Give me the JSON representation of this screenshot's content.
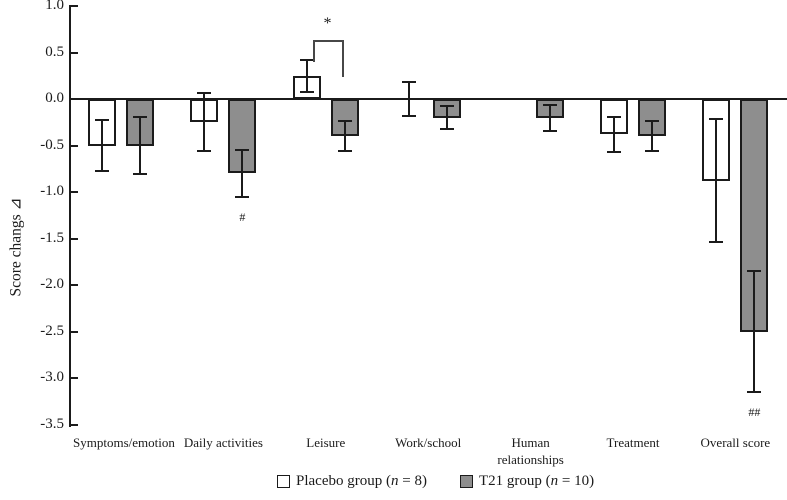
{
  "figure": {
    "background": "#ffffff",
    "line_color": "#1b1b1b",
    "legend": [
      {
        "swatch_color": "#ffffff",
        "parts": [
          "Placebo group (",
          "n",
          " = 8)"
        ]
      },
      {
        "swatch_color": "#8e8e8e",
        "parts": [
          "T21 group (",
          "n",
          " = 10)"
        ]
      }
    ]
  },
  "chart_data": {
    "type": "bar",
    "title": "",
    "xlabel": "",
    "ylabel": "Score changs ⊿",
    "ylim": [
      -3.5,
      1.0
    ],
    "grid": false,
    "legend_position": "bottom",
    "yticks": [
      "1.0",
      "0.5",
      "0.0",
      "-0.5",
      "-1.0",
      "-1.5",
      "-2.0",
      "-2.5",
      "-3.0",
      "-3.5"
    ],
    "categories": [
      "Symptoms/emotion",
      "Daily activities",
      "Leisure",
      "Work/school",
      "Human relationships",
      "Treatment",
      "Overall score"
    ],
    "series": [
      {
        "name": "Placebo group (n = 8)",
        "key": "placebo",
        "color": "#ffffff",
        "values": [
          -0.5,
          -0.25,
          0.25,
          0,
          0,
          -0.38,
          -0.88
        ],
        "errors": [
          0.27,
          0.31,
          0.17,
          0.18,
          null,
          0.19,
          0.66
        ]
      },
      {
        "name": "T21 group (n = 10)",
        "key": "t21",
        "color": "#8e8e8e",
        "values": [
          -0.5,
          -0.8,
          -0.4,
          -0.2,
          -0.2,
          -0.4,
          -2.5
        ],
        "errors": [
          0.31,
          0.25,
          0.16,
          0.12,
          0.14,
          0.16,
          0.65
        ]
      }
    ],
    "annotations": {
      "sig_below": [
        {
          "text": "#",
          "category_index": 1,
          "series_index": 1
        },
        {
          "text": "##",
          "category_index": 6,
          "series_index": 1
        }
      ],
      "bracket": {
        "text": "*",
        "category_index": 2,
        "between_series": [
          0,
          1
        ]
      }
    }
  }
}
